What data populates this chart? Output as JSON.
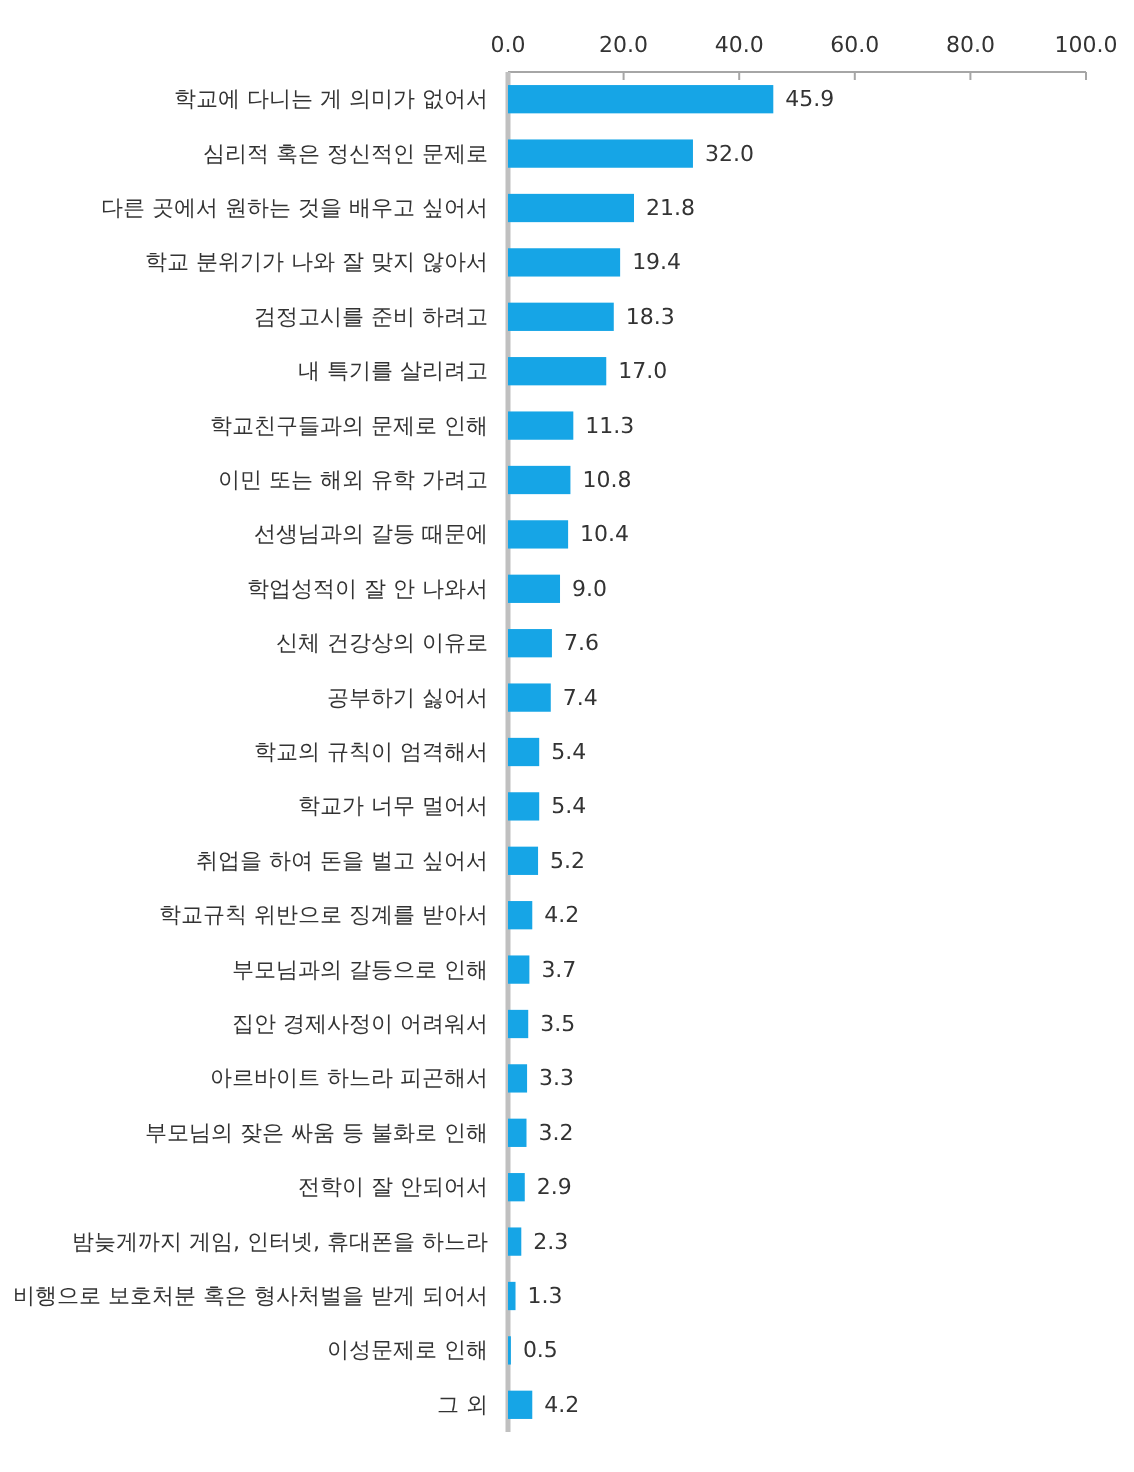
{
  "chart_data": {
    "type": "bar",
    "orientation": "horizontal",
    "categories": [
      "학교에 다니는 게 의미가 없어서",
      "심리적 혹은 정신적인 문제로",
      "다른 곳에서 원하는 것을 배우고 싶어서",
      "학교 분위기가 나와 잘 맞지 않아서",
      "검정고시를 준비 하려고",
      "내 특기를 살리려고",
      "학교친구들과의 문제로 인해",
      "이민 또는 해외 유학 가려고",
      "선생님과의 갈등 때문에",
      "학업성적이 잘 안 나와서",
      "신체 건강상의 이유로",
      "공부하기 싫어서",
      "학교의 규칙이 엄격해서",
      "학교가 너무 멀어서",
      "취업을 하여 돈을 벌고 싶어서",
      "학교규칙 위반으로 징계를 받아서",
      "부모님과의 갈등으로 인해",
      "집안 경제사정이 어려워서",
      "아르바이트 하느라 피곤해서",
      "부모님의 잦은 싸움 등 불화로 인해",
      "전학이 잘 안되어서",
      "밤늦게까지 게임, 인터넷, 휴대폰을 하느라",
      "비행으로 보호처분 혹은 형사처벌을 받게 되어서",
      "이성문제로 인해",
      "그 외"
    ],
    "values": [
      45.9,
      32.0,
      21.8,
      19.4,
      18.3,
      17.0,
      11.3,
      10.8,
      10.4,
      9.0,
      7.6,
      7.4,
      5.4,
      5.4,
      5.2,
      4.2,
      3.7,
      3.5,
      3.3,
      3.2,
      2.9,
      2.3,
      1.3,
      0.5,
      4.2
    ],
    "value_labels": [
      "45.9",
      "32.0",
      "21.8",
      "19.4",
      "18.3",
      "17.0",
      "11.3",
      "10.8",
      "10.4",
      "9.0",
      "7.6",
      "7.4",
      "5.4",
      "5.4",
      "5.2",
      "4.2",
      "3.7",
      "3.5",
      "3.3",
      "3.2",
      "2.9",
      "2.3",
      "1.3",
      "0.5",
      "4.2"
    ],
    "color": "#16a5e6",
    "xlim": [
      0,
      100
    ],
    "xticks": [
      {
        "value": 0,
        "label": "0.0"
      },
      {
        "value": 20,
        "label": "20.0"
      },
      {
        "value": 40,
        "label": "40.0"
      },
      {
        "value": 60,
        "label": "60.0"
      },
      {
        "value": 80,
        "label": "80.0"
      },
      {
        "value": 100,
        "label": "100.0"
      }
    ]
  }
}
